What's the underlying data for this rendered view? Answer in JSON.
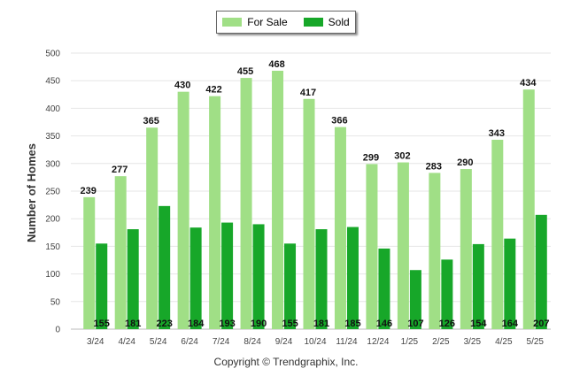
{
  "chart_data": {
    "type": "bar",
    "categories": [
      "3/24",
      "4/24",
      "5/24",
      "6/24",
      "7/24",
      "8/24",
      "9/24",
      "10/24",
      "11/24",
      "12/24",
      "1/25",
      "2/25",
      "3/25",
      "4/25",
      "5/25"
    ],
    "series": [
      {
        "name": "For Sale",
        "color": "#a0df86",
        "values": [
          239,
          277,
          365,
          430,
          422,
          455,
          468,
          417,
          366,
          299,
          302,
          283,
          290,
          343,
          434
        ]
      },
      {
        "name": "Sold",
        "color": "#17a729",
        "values": [
          155,
          181,
          223,
          184,
          193,
          190,
          155,
          181,
          185,
          146,
          107,
          126,
          154,
          164,
          207
        ]
      }
    ],
    "ylabel": "Number of Homes",
    "ylim": [
      0,
      500
    ],
    "yticks": [
      0,
      50,
      100,
      150,
      200,
      250,
      300,
      350,
      400,
      450,
      500
    ],
    "grid": true,
    "legend_position": "top-center"
  },
  "footer": {
    "copyright": "Copyright © Trendgraphix, Inc."
  }
}
